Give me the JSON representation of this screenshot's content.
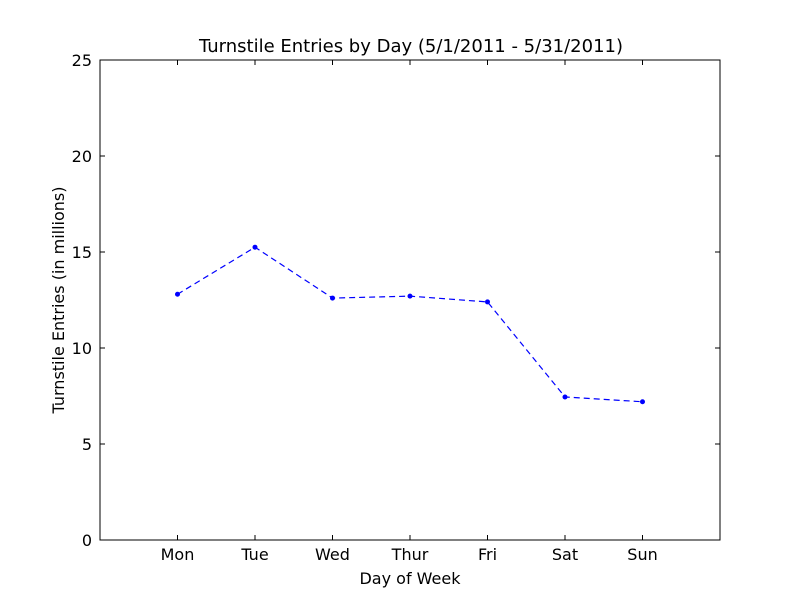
{
  "chart_data": {
    "type": "line",
    "title": "Turnstile Entries by Day (5/1/2011 - 5/31/2011)",
    "xlabel": "Day of Week",
    "ylabel": "Turnstile Entries (in millions)",
    "categories": [
      "Mon",
      "Tue",
      "Wed",
      "Thur",
      "Fri",
      "Sat",
      "Sun"
    ],
    "series": [
      {
        "values": [
          12.8,
          15.25,
          12.6,
          12.7,
          12.4,
          7.45,
          7.2
        ],
        "color": "#0000ff",
        "line_style": "dashed",
        "marker": "dot"
      }
    ],
    "ylim": [
      0,
      25
    ],
    "yticks": [
      0,
      5,
      10,
      15,
      20,
      25
    ],
    "ytick_labels": [
      "0",
      "5",
      "10",
      "15",
      "20",
      "25"
    ],
    "grid": false,
    "legend": "none"
  }
}
